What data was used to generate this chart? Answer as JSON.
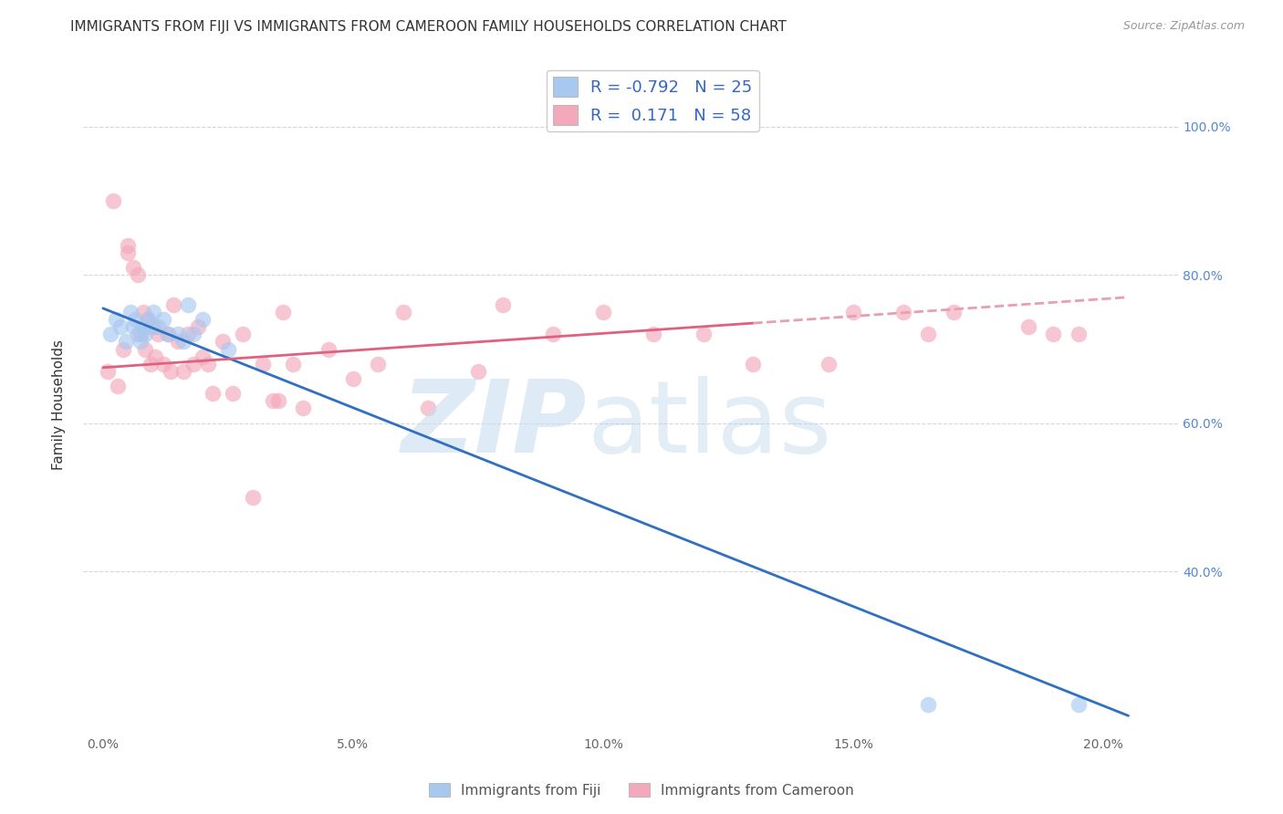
{
  "title": "IMMIGRANTS FROM FIJI VS IMMIGRANTS FROM CAMEROON FAMILY HOUSEHOLDS CORRELATION CHART",
  "source": "Source: ZipAtlas.com",
  "ylabel": "Family Households",
  "xtick_labels": [
    "0.0%",
    "5.0%",
    "10.0%",
    "15.0%",
    "20.0%"
  ],
  "xtick_values": [
    0.0,
    5.0,
    10.0,
    15.0,
    20.0
  ],
  "ytick_right_labels": [
    "40.0%",
    "60.0%",
    "80.0%",
    "100.0%"
  ],
  "ytick_right_values": [
    40.0,
    60.0,
    80.0,
    100.0
  ],
  "ymin": 18.0,
  "ymax": 107.0,
  "xmin": -0.4,
  "xmax": 21.5,
  "fiji_color": "#A8C8F0",
  "cameroon_color": "#F4A8BC",
  "fiji_line_color": "#3070C0",
  "cameroon_line_solid_color": "#E06080",
  "cameroon_line_dashed_color": "#E8A0B0",
  "fiji_scatter_x": [
    0.15,
    0.25,
    0.35,
    0.45,
    0.55,
    0.6,
    0.65,
    0.7,
    0.75,
    0.8,
    0.85,
    0.9,
    0.95,
    1.0,
    1.1,
    1.2,
    1.3,
    1.5,
    1.6,
    1.7,
    1.8,
    2.0,
    2.5,
    16.5,
    19.5
  ],
  "fiji_scatter_y": [
    72.0,
    74.0,
    73.0,
    71.0,
    75.0,
    73.0,
    74.0,
    72.0,
    71.0,
    73.0,
    72.0,
    74.0,
    73.0,
    75.0,
    73.0,
    74.0,
    72.0,
    72.0,
    71.0,
    76.0,
    72.0,
    74.0,
    70.0,
    22.0,
    22.0
  ],
  "cameroon_scatter_x": [
    0.1,
    0.2,
    0.3,
    0.4,
    0.5,
    0.5,
    0.6,
    0.7,
    0.75,
    0.8,
    0.85,
    0.9,
    0.95,
    1.0,
    1.05,
    1.1,
    1.2,
    1.3,
    1.35,
    1.4,
    1.5,
    1.6,
    1.7,
    1.8,
    1.9,
    2.0,
    2.1,
    2.2,
    2.4,
    2.6,
    2.8,
    3.0,
    3.2,
    3.4,
    3.5,
    3.6,
    3.8,
    4.0,
    4.5,
    5.0,
    5.5,
    6.0,
    6.5,
    7.5,
    8.0,
    9.0,
    10.0,
    11.0,
    12.0,
    13.0,
    14.5,
    15.0,
    16.0,
    16.5,
    17.0,
    18.5,
    19.0,
    19.5
  ],
  "cameroon_scatter_y": [
    67.0,
    90.0,
    65.0,
    70.0,
    84.0,
    83.0,
    81.0,
    80.0,
    72.0,
    75.0,
    70.0,
    74.0,
    68.0,
    73.0,
    69.0,
    72.0,
    68.0,
    72.0,
    67.0,
    76.0,
    71.0,
    67.0,
    72.0,
    68.0,
    73.0,
    69.0,
    68.0,
    64.0,
    71.0,
    64.0,
    72.0,
    50.0,
    68.0,
    63.0,
    63.0,
    75.0,
    68.0,
    62.0,
    70.0,
    66.0,
    68.0,
    75.0,
    62.0,
    67.0,
    76.0,
    72.0,
    75.0,
    72.0,
    72.0,
    68.0,
    68.0,
    75.0,
    75.0,
    72.0,
    75.0,
    73.0,
    72.0,
    72.0
  ],
  "fiji_trend_x0": 0.0,
  "fiji_trend_y0": 75.5,
  "fiji_trend_x1": 20.5,
  "fiji_trend_y1": 20.5,
  "cameroon_solid_x0": 0.0,
  "cameroon_solid_y0": 67.5,
  "cameroon_solid_x1": 13.0,
  "cameroon_solid_y1": 73.5,
  "cameroon_dashed_x0": 13.0,
  "cameroon_dashed_y0": 73.5,
  "cameroon_dashed_x1": 20.5,
  "cameroon_dashed_y1": 77.0,
  "legend_fiji_label": "R = -0.792   N = 25",
  "legend_cameroon_label": "R =  0.171   N = 58",
  "background_color": "#FFFFFF",
  "grid_color": "#CCCCCC",
  "title_fontsize": 11,
  "axis_label_fontsize": 11,
  "tick_fontsize": 10,
  "legend_bottom_fiji": "Immigrants from Fiji",
  "legend_bottom_cameroon": "Immigrants from Cameroon"
}
